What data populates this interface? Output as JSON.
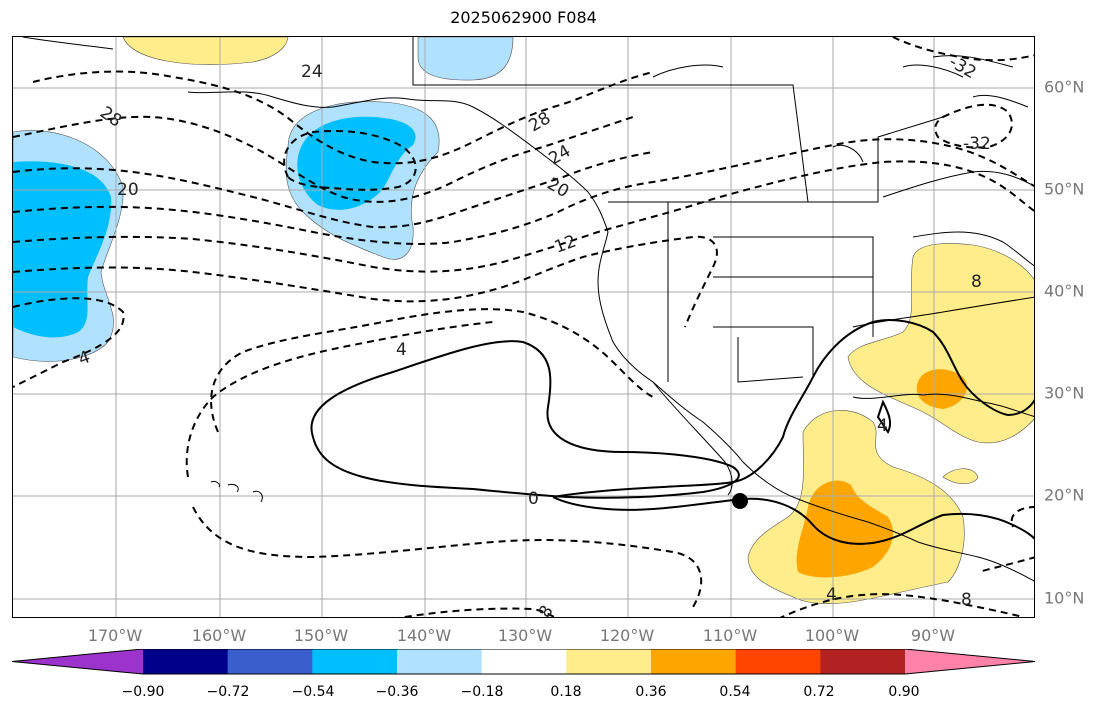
{
  "title": "2025062900 F084",
  "lat_labels": [
    "60°N",
    "50°N",
    "40°N",
    "30°N",
    "20°N",
    "10°N"
  ],
  "lon_labels": [
    "170°W",
    "160°W",
    "150°W",
    "140°W",
    "130°W",
    "120°W",
    "110°W",
    "100°W",
    "90°W"
  ],
  "colorbar": {
    "ticks": [
      "−0.90",
      "−0.72",
      "−0.54",
      "−0.36",
      "−0.18",
      "0.18",
      "0.36",
      "0.54",
      "0.72",
      "0.90"
    ],
    "colors": [
      "#9b33cc",
      "#00008b",
      "#3a5fcd",
      "#00bfff",
      "#b0e2ff",
      "#ffffff",
      "#ffec8b",
      "#ffa500",
      "#ff4500",
      "#b22222",
      "#ff83a8"
    ]
  },
  "contour_labels": [
    "28",
    "24",
    "28",
    "24",
    "20",
    "20",
    "12",
    "4",
    "4",
    "0",
    "4",
    "-32",
    "-32",
    "8",
    "4",
    "8",
    "8"
  ],
  "marker": "filled-circle"
}
